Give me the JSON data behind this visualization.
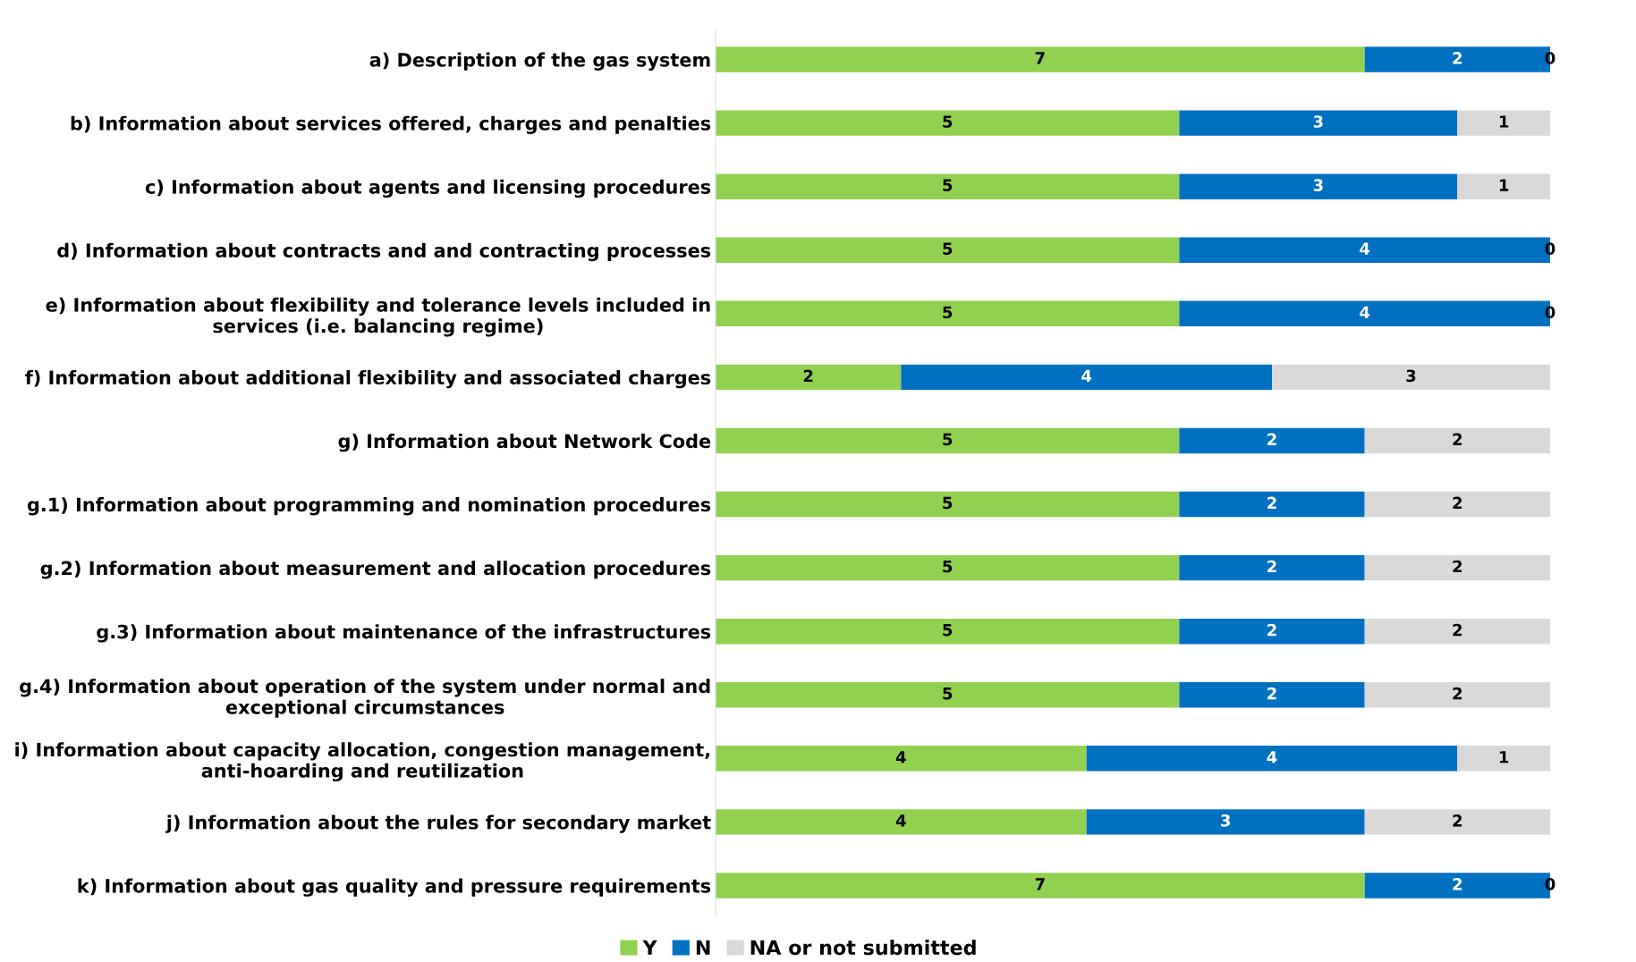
{
  "chart_data": {
    "type": "bar",
    "orientation": "horizontal",
    "stacked": true,
    "data_labels": true,
    "legend": "bottom",
    "grid": false,
    "tick_labels": "y",
    "xlim": [
      0,
      9
    ],
    "categories": [
      "a) Description of the gas system",
      "b) Information about services offered, charges and penalties",
      "c) Information about agents and licensing procedures",
      "d) Information about contracts and and contracting processes",
      "e) Information about flexibility and tolerance levels included in\nservices (i.e. balancing regime)",
      "f) Information about additional flexibility and associated charges",
      "g) Information about Network Code",
      "g.1) Information about programming and nomination procedures",
      "g.2) Information about measurement and allocation procedures",
      "g.3) Information about maintenance of the infrastructures",
      "g.4) Information about operation of the system under normal and\nexceptional circumstances",
      "i) Information about capacity allocation, congestion management,\nanti-hoarding and reutilization",
      "j) Information about the rules for secondary market",
      "k) Information about gas quality and pressure requirements"
    ],
    "series": [
      {
        "name": "Y",
        "color": "#92d050",
        "values": [
          7,
          5,
          5,
          5,
          5,
          2,
          5,
          5,
          5,
          5,
          5,
          4,
          4,
          7
        ]
      },
      {
        "name": "N",
        "color": "#0070c0",
        "values": [
          2,
          3,
          3,
          4,
          4,
          4,
          2,
          2,
          2,
          2,
          2,
          4,
          3,
          2
        ]
      },
      {
        "name": "NA or not submitted",
        "color": "#d9d9d9",
        "values": [
          0,
          1,
          1,
          0,
          0,
          3,
          2,
          2,
          2,
          2,
          2,
          1,
          2,
          0
        ]
      }
    ]
  }
}
